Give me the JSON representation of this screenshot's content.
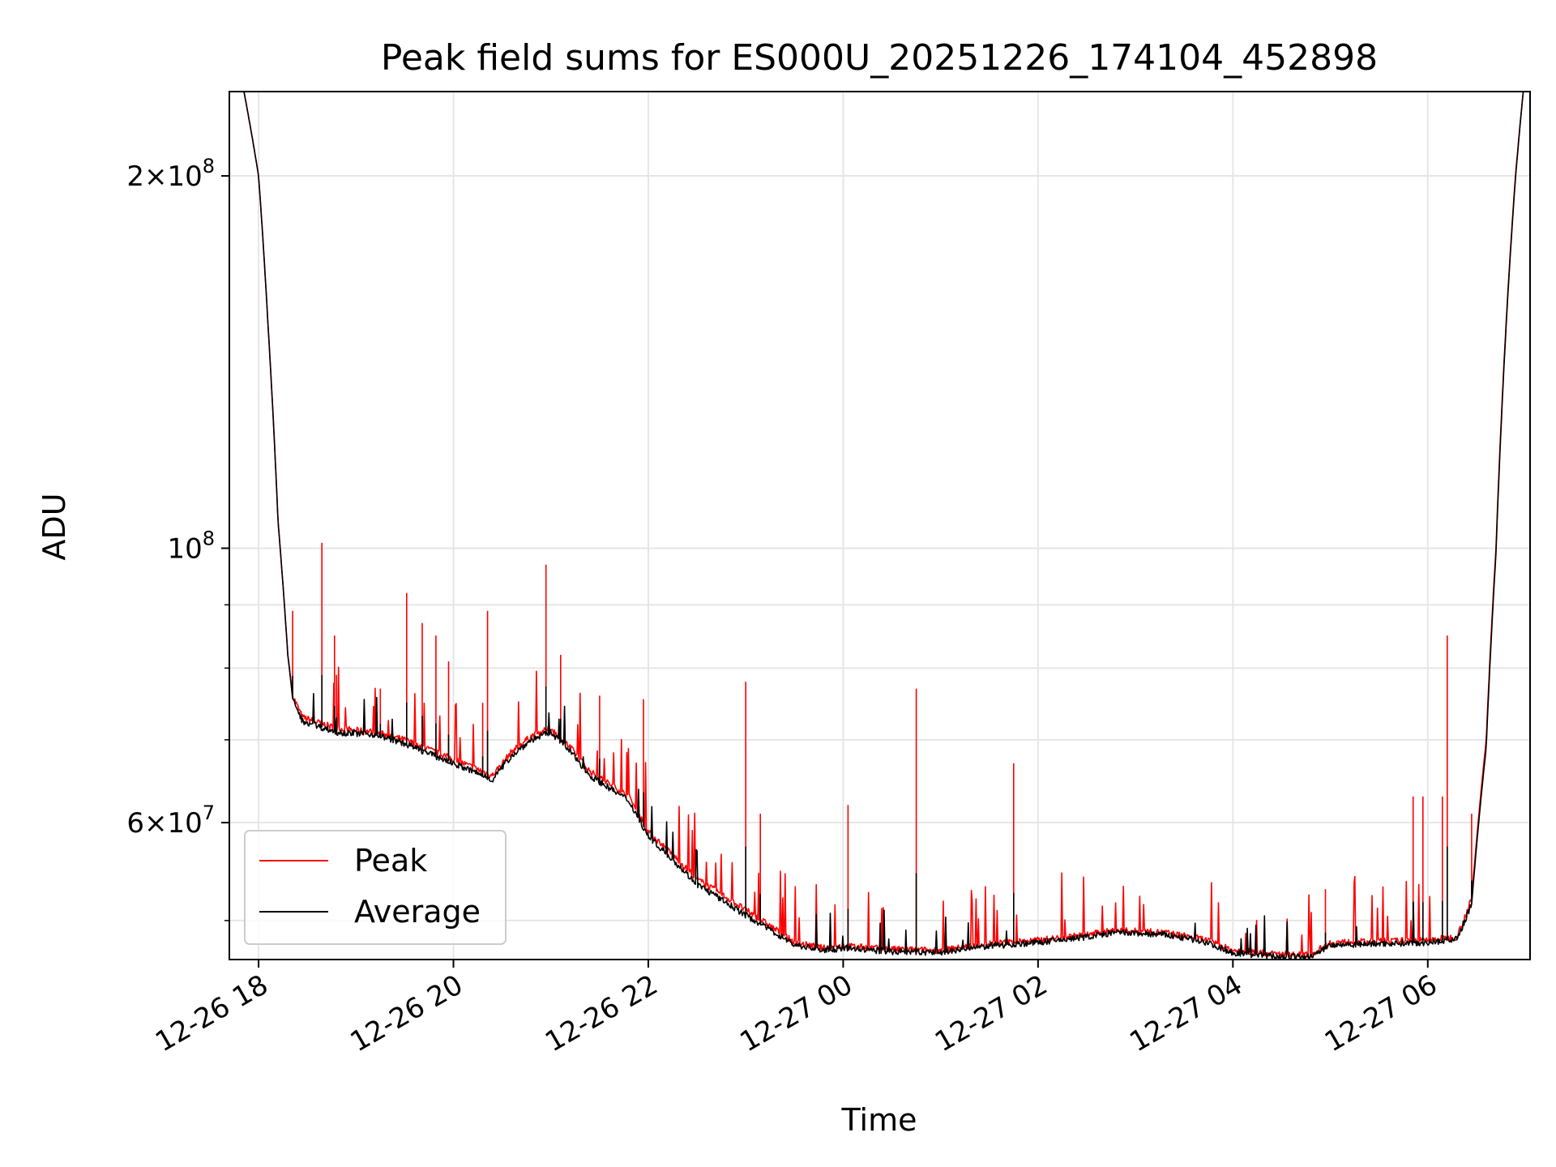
{
  "chart_data": {
    "type": "line",
    "title": "Peak field sums for ES000U_20251226_174104_452898",
    "xlabel": "Time",
    "ylabel": "ADU",
    "yscale": "log",
    "grid": true,
    "legend_position": "lower-left",
    "xlim": [
      -0.3,
      13.05
    ],
    "ylim": [
      46500000,
      234000000
    ],
    "x_ticks": [
      {
        "value": 0,
        "label": "12-26 18"
      },
      {
        "value": 2,
        "label": "12-26 20"
      },
      {
        "value": 4,
        "label": "12-26 22"
      },
      {
        "value": 6,
        "label": "12-27 00"
      },
      {
        "value": 8,
        "label": "12-27 02"
      },
      {
        "value": 10,
        "label": "12-27 04"
      },
      {
        "value": 12,
        "label": "12-27 06"
      }
    ],
    "y_major_ticks": [
      {
        "value": 200000000,
        "mantissa": "2",
        "exp": "8"
      },
      {
        "value": 100000000,
        "mantissa": "",
        "exp": "8"
      },
      {
        "value": 60000000,
        "mantissa": "6",
        "exp": "7"
      }
    ],
    "y_minor_ticks": [
      50000000,
      70000000,
      80000000,
      90000000
    ],
    "x_unit": "hours since 2025-12-26 18:00",
    "series": [
      {
        "name": "Peak",
        "color": "#ff0000",
        "baseline": [
          [
            -0.3,
            234000000
          ],
          [
            -0.15,
            234000000
          ],
          [
            0.0,
            200000000
          ],
          [
            0.1,
            150000000
          ],
          [
            0.2,
            105000000
          ],
          [
            0.3,
            82000000
          ],
          [
            0.35,
            76000000
          ],
          [
            0.45,
            73000000
          ],
          [
            0.8,
            71500000
          ],
          [
            1.2,
            71000000
          ],
          [
            1.5,
            70000000
          ],
          [
            1.8,
            68500000
          ],
          [
            2.2,
            66500000
          ],
          [
            2.4,
            65500000
          ],
          [
            2.6,
            68500000
          ],
          [
            2.8,
            70500000
          ],
          [
            3.0,
            71500000
          ],
          [
            3.2,
            69000000
          ],
          [
            3.4,
            66000000
          ],
          [
            3.8,
            63000000
          ],
          [
            4.0,
            59000000
          ],
          [
            4.5,
            54000000
          ],
          [
            5.0,
            51000000
          ],
          [
            5.5,
            48000000
          ],
          [
            5.8,
            47500000
          ],
          [
            6.0,
            47700000
          ],
          [
            6.5,
            47400000
          ],
          [
            7.0,
            47300000
          ],
          [
            7.5,
            47900000
          ],
          [
            8.0,
            48200000
          ],
          [
            8.5,
            48700000
          ],
          [
            8.8,
            49100000
          ],
          [
            9.3,
            48900000
          ],
          [
            9.7,
            48300000
          ],
          [
            10.0,
            47300000
          ],
          [
            10.4,
            47000000
          ],
          [
            10.8,
            46900000
          ],
          [
            11.0,
            48000000
          ],
          [
            11.5,
            48100000
          ],
          [
            12.0,
            48200000
          ],
          [
            12.3,
            48500000
          ],
          [
            12.45,
            52000000
          ],
          [
            12.6,
            70000000
          ],
          [
            12.7,
            100000000
          ],
          [
            12.8,
            150000000
          ],
          [
            12.9,
            200000000
          ],
          [
            12.98,
            234000000
          ],
          [
            13.05,
            234000000
          ]
        ]
      },
      {
        "name": "Average",
        "color": "#000000",
        "baseline": [
          [
            -0.3,
            234000000
          ],
          [
            -0.15,
            234000000
          ],
          [
            0.0,
            200000000
          ],
          [
            0.1,
            150000000
          ],
          [
            0.2,
            105000000
          ],
          [
            0.3,
            82000000
          ],
          [
            0.35,
            75500000
          ],
          [
            0.45,
            72500000
          ],
          [
            0.8,
            71000000
          ],
          [
            1.2,
            70700000
          ],
          [
            1.5,
            69500000
          ],
          [
            1.8,
            68000000
          ],
          [
            2.2,
            66000000
          ],
          [
            2.4,
            65000000
          ],
          [
            2.6,
            68000000
          ],
          [
            2.8,
            70000000
          ],
          [
            3.0,
            71000000
          ],
          [
            3.2,
            68500000
          ],
          [
            3.4,
            65500000
          ],
          [
            3.8,
            62500000
          ],
          [
            4.0,
            58500000
          ],
          [
            4.5,
            53500000
          ],
          [
            5.0,
            50500000
          ],
          [
            5.5,
            47800000
          ],
          [
            5.8,
            47300000
          ],
          [
            6.0,
            47500000
          ],
          [
            6.5,
            47200000
          ],
          [
            7.0,
            47100000
          ],
          [
            7.5,
            47700000
          ],
          [
            8.0,
            48000000
          ],
          [
            8.5,
            48500000
          ],
          [
            8.8,
            48900000
          ],
          [
            9.3,
            48700000
          ],
          [
            9.7,
            48100000
          ],
          [
            10.0,
            47100000
          ],
          [
            10.4,
            46800000
          ],
          [
            10.8,
            46700000
          ],
          [
            11.0,
            47800000
          ],
          [
            11.5,
            47900000
          ],
          [
            12.0,
            48000000
          ],
          [
            12.3,
            48300000
          ],
          [
            12.45,
            51500000
          ],
          [
            12.6,
            69000000
          ],
          [
            12.7,
            99000000
          ],
          [
            12.8,
            149000000
          ],
          [
            12.9,
            199000000
          ],
          [
            12.98,
            234000000
          ],
          [
            13.05,
            234000000
          ]
        ]
      }
    ],
    "spikes": [
      [
        0.35,
        89000000
      ],
      [
        0.65,
        101000000
      ],
      [
        0.78,
        85000000
      ],
      [
        0.8,
        79000000
      ],
      [
        1.25,
        77000000
      ],
      [
        1.52,
        92000000
      ],
      [
        1.68,
        87000000
      ],
      [
        1.82,
        85000000
      ],
      [
        1.95,
        81000000
      ],
      [
        2.3,
        75000000
      ],
      [
        2.35,
        89000000
      ],
      [
        2.95,
        97000000
      ],
      [
        3.1,
        82000000
      ],
      [
        3.5,
        76000000
      ],
      [
        3.95,
        75500000
      ],
      [
        5.0,
        78000000
      ],
      [
        5.15,
        61000000
      ],
      [
        6.05,
        62000000
      ],
      [
        6.75,
        77000000
      ],
      [
        7.75,
        67000000
      ],
      [
        10.95,
        53000000
      ],
      [
        11.85,
        63000000
      ],
      [
        11.95,
        63000000
      ],
      [
        12.15,
        63000000
      ],
      [
        12.2,
        85000000
      ],
      [
        12.45,
        61000000
      ]
    ],
    "legend": [
      {
        "label": "Peak",
        "color": "#ff0000"
      },
      {
        "label": "Average",
        "color": "#000000"
      }
    ]
  }
}
